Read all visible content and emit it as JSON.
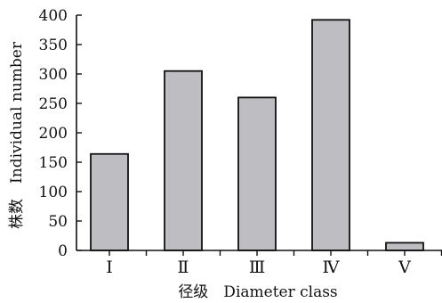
{
  "chart_data": {
    "type": "bar",
    "categories": [
      "Ⅰ",
      "Ⅱ",
      "Ⅲ",
      "Ⅳ",
      "Ⅴ"
    ],
    "values": [
      164,
      305,
      260,
      392,
      13
    ],
    "xlabel": "径级　Diameter class",
    "ylabel": "株数　Individual number",
    "ylim": [
      0,
      400
    ],
    "yticks": [
      "0",
      "50",
      "100",
      "150",
      "200",
      "250",
      "300",
      "350",
      "400"
    ],
    "grid": false,
    "legend": "none",
    "colors": {
      "bar_fill": "#bebec2",
      "bar_stroke": "#111111",
      "axis": "#111111"
    }
  }
}
